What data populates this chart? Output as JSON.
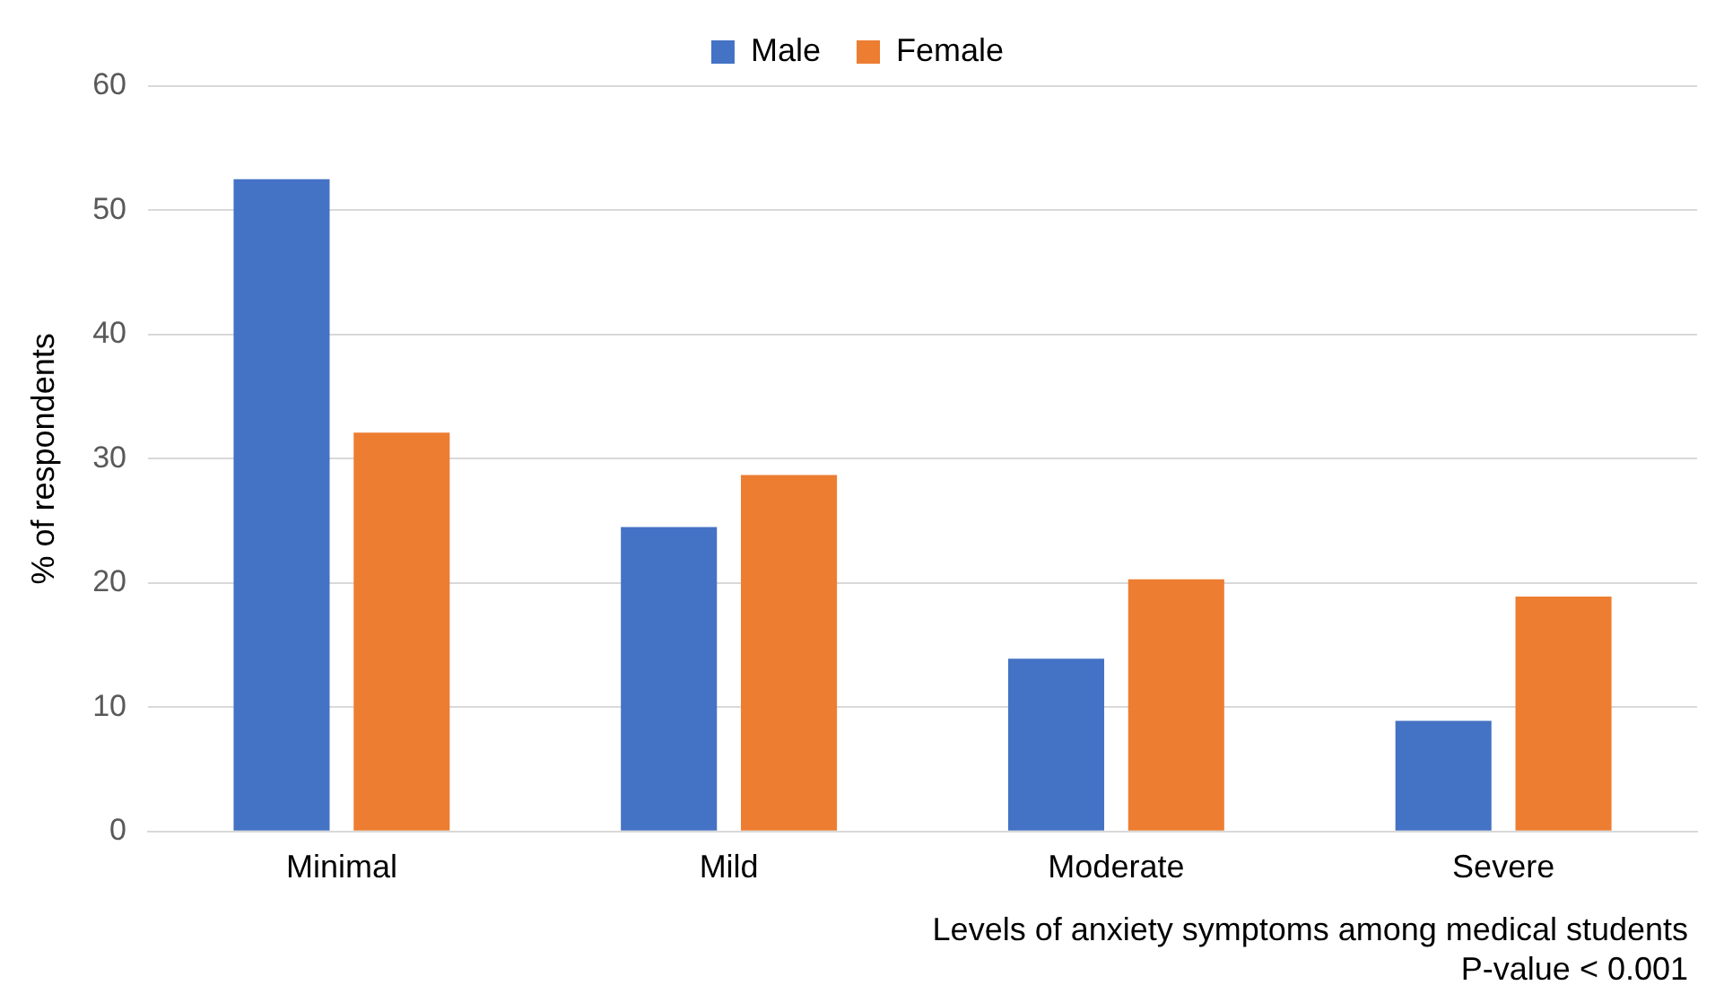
{
  "chart_data": {
    "type": "bar",
    "xlabel": "Levels of anxiety symptoms among medical students",
    "ylabel": "% of respondents",
    "annotations": [
      "P-value < 0.001"
    ],
    "categories": [
      "Minimal",
      "Mild",
      "Moderate",
      "Severe"
    ],
    "series": [
      {
        "name": "Male",
        "color": "#4472c4",
        "values": [
          52.5,
          24.5,
          13.9,
          8.9
        ]
      },
      {
        "name": "Female",
        "color": "#ed7d31",
        "values": [
          32.1,
          28.7,
          20.3,
          18.9
        ]
      }
    ],
    "ylim": [
      0,
      60
    ],
    "yticks": [
      0,
      10,
      20,
      30,
      40,
      50,
      60
    ],
    "grid": "y",
    "legend": "top"
  }
}
